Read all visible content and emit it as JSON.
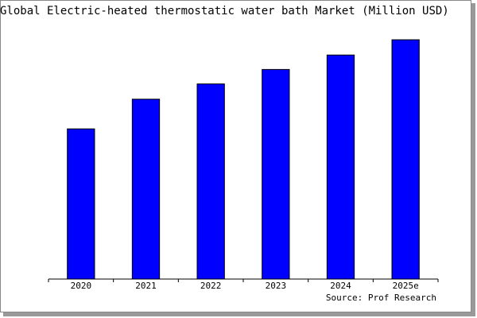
{
  "chart_data": {
    "type": "bar",
    "title": "Global Electric-heated thermostatic water bath Market (Million USD)",
    "source": "Source: Prof Research",
    "categories": [
      "2020",
      "2021",
      "2022",
      "2023",
      "2024",
      "2025e"
    ],
    "values": [
      187,
      224,
      243,
      261,
      279,
      298
    ],
    "color": "#0000ff",
    "ylim": [
      0,
      300
    ]
  }
}
